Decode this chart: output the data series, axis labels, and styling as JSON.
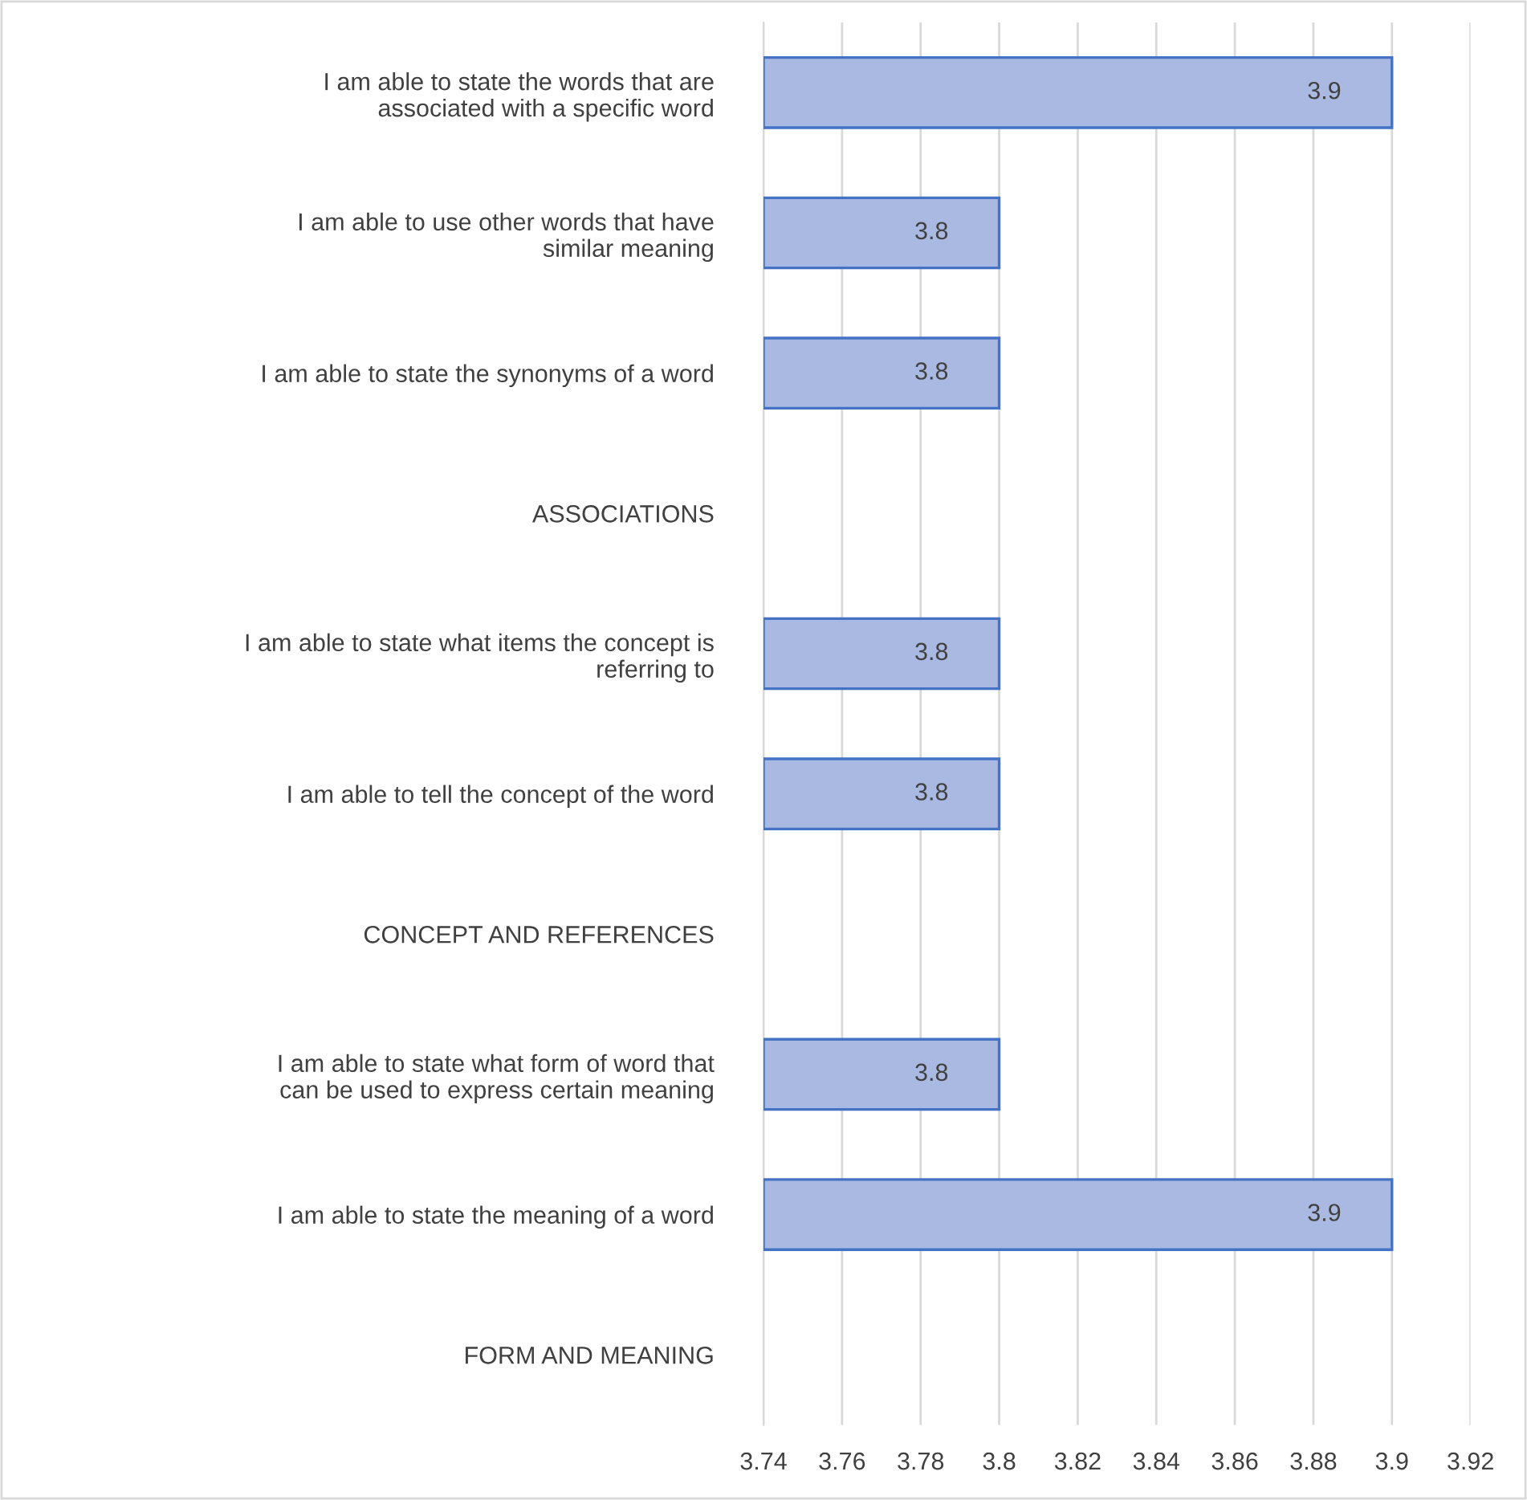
{
  "chart_data": {
    "type": "bar",
    "orientation": "horizontal",
    "categories": [
      "I am able to state the words that are\nassociated with a specific word",
      "I am able to use other words that have\nsimilar meaning",
      "I am able to state the synonyms of a word",
      "ASSOCIATIONS",
      "I am able to state what items the concept is\nreferring to",
      "I am able to tell the concept of the word",
      "CONCEPT AND REFERENCES",
      "I am able to state what form of word that\ncan be used to express certain meaning",
      "I am able to state the meaning of a word",
      "FORM AND MEANING"
    ],
    "values": [
      3.9,
      3.8,
      3.8,
      null,
      3.8,
      3.8,
      null,
      3.8,
      3.9,
      null
    ],
    "color": "#a9b9e2",
    "xlim": [
      3.74,
      3.92
    ],
    "xticks": [
      3.74,
      3.76,
      3.78,
      3.8,
      3.82,
      3.84,
      3.86,
      3.88,
      3.9,
      3.92
    ],
    "grid": "x",
    "data_labels": true,
    "legend": false
  }
}
